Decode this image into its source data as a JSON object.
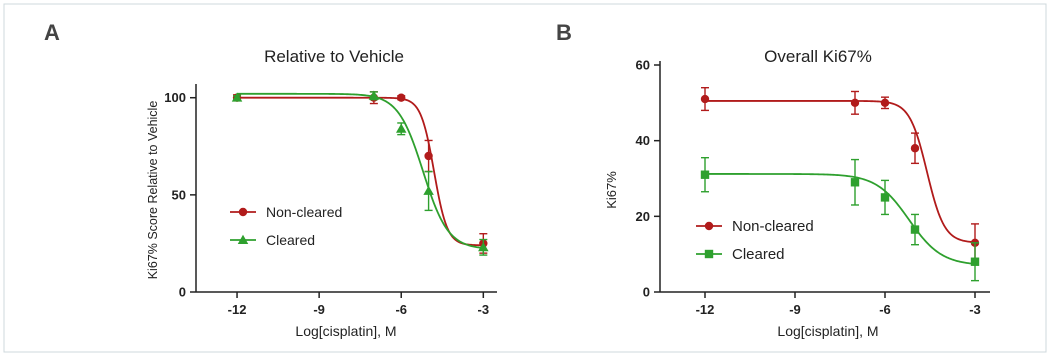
{
  "colors": {
    "noncleared": "#b11b1b",
    "cleared": "#2ea02e",
    "axis": "#222222",
    "frame": "#cfd8dc"
  },
  "chart_data": [
    {
      "panel_label": "A",
      "type": "line",
      "title": "Relative to Vehicle",
      "xlabel": "Log[cisplatin], M",
      "ylabel": "Ki67% Score Relative to Vehicle",
      "xlim": [
        -13.5,
        -2.5
      ],
      "ylim": [
        0,
        105
      ],
      "xticks": [
        -12,
        -9,
        -6,
        -3
      ],
      "xtick_labels": [
        "-12",
        "-9",
        "-6",
        "-3"
      ],
      "yticks": [
        0,
        50,
        100
      ],
      "ytick_labels": [
        "0",
        "50",
        "100"
      ],
      "grid": false,
      "legend_position": "lower-left",
      "series": [
        {
          "name": "Non-cleared",
          "marker": "circle",
          "color": "#b11b1b",
          "x": [
            -12,
            -7,
            -6,
            -5,
            -3
          ],
          "y": [
            100,
            100,
            100,
            70,
            25
          ],
          "yerr": [
            1.5,
            3,
            1,
            8,
            5
          ],
          "fit": {
            "top": 100,
            "bottom": 24,
            "logec50": -4.8,
            "hill": 1.8
          }
        },
        {
          "name": "Cleared",
          "marker": "triangle",
          "color": "#2ea02e",
          "x": [
            -12,
            -7,
            -6,
            -5,
            -3
          ],
          "y": [
            100,
            101,
            84,
            52,
            23
          ],
          "yerr": [
            1,
            2,
            3,
            10,
            4
          ],
          "fit": {
            "top": 102,
            "bottom": 22,
            "logec50": -5.2,
            "hill": 0.95
          }
        }
      ]
    },
    {
      "panel_label": "B",
      "type": "line",
      "title": "Overall Ki67%",
      "xlabel": "Log[cisplatin], M",
      "ylabel": "Ki67%",
      "xlim": [
        -13.5,
        -2.5
      ],
      "ylim": [
        0,
        60
      ],
      "xticks": [
        -12,
        -9,
        -6,
        -3
      ],
      "xtick_labels": [
        "-12",
        "-9",
        "-6",
        "-3"
      ],
      "yticks": [
        0,
        20,
        40,
        60
      ],
      "ytick_labels": [
        "0",
        "20",
        "40",
        "60"
      ],
      "grid": false,
      "legend_position": "lower-left",
      "series": [
        {
          "name": "Non-cleared",
          "marker": "circle",
          "color": "#b11b1b",
          "x": [
            -12,
            -7,
            -6,
            -5,
            -3
          ],
          "y": [
            51,
            50,
            50,
            38,
            13
          ],
          "yerr": [
            3,
            3,
            1.5,
            4,
            5
          ],
          "fit": {
            "top": 50.5,
            "bottom": 13,
            "logec50": -4.6,
            "hill": 1.5
          }
        },
        {
          "name": "Cleared",
          "marker": "square",
          "color": "#2ea02e",
          "x": [
            -12,
            -7,
            -6,
            -5,
            -3
          ],
          "y": [
            31,
            29,
            25,
            16.5,
            8
          ],
          "yerr": [
            4.5,
            6,
            4.5,
            4,
            5
          ],
          "fit": {
            "top": 31.2,
            "bottom": 7,
            "logec50": -5.2,
            "hill": 0.8
          }
        }
      ]
    }
  ]
}
